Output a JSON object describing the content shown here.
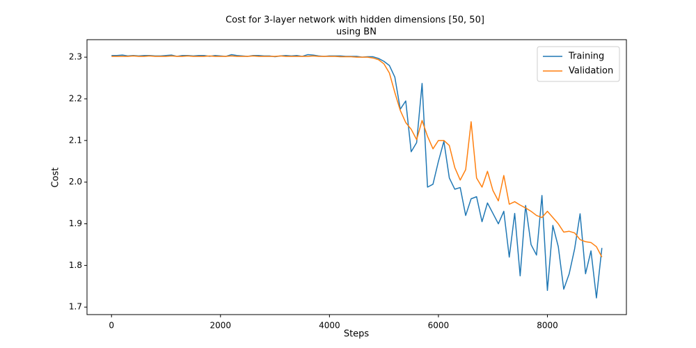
{
  "chart_data": {
    "type": "line",
    "title_lines": [
      "Cost for 3-layer network with hidden dimensions [50, 50]",
      "using BN"
    ],
    "x_label": "Steps",
    "y_label": "Cost",
    "x": [
      0,
      100,
      200,
      300,
      400,
      500,
      600,
      700,
      800,
      900,
      1000,
      1100,
      1200,
      1300,
      1400,
      1500,
      1600,
      1700,
      1800,
      1900,
      2000,
      2100,
      2200,
      2300,
      2400,
      2500,
      2600,
      2700,
      2800,
      2900,
      3000,
      3100,
      3200,
      3300,
      3400,
      3500,
      3600,
      3700,
      3800,
      3900,
      4000,
      4100,
      4200,
      4300,
      4400,
      4500,
      4600,
      4700,
      4800,
      4900,
      5000,
      5100,
      5200,
      5300,
      5400,
      5500,
      5600,
      5700,
      5800,
      5900,
      6000,
      6100,
      6200,
      6300,
      6400,
      6500,
      6600,
      6700,
      6800,
      6900,
      7000,
      7100,
      7200,
      7300,
      7400,
      7500,
      7600,
      7700,
      7800,
      7900,
      8000,
      8100,
      8200,
      8300,
      8400,
      8500,
      8600,
      8700,
      8800,
      8900,
      9000
    ],
    "series": [
      {
        "name": "Training",
        "color": "#1f77b4",
        "values": [
          2.304,
          2.304,
          2.305,
          2.303,
          2.304,
          2.303,
          2.304,
          2.304,
          2.303,
          2.303,
          2.304,
          2.305,
          2.302,
          2.304,
          2.304,
          2.303,
          2.304,
          2.304,
          2.302,
          2.304,
          2.303,
          2.302,
          2.306,
          2.304,
          2.303,
          2.302,
          2.304,
          2.304,
          2.303,
          2.303,
          2.301,
          2.303,
          2.304,
          2.303,
          2.304,
          2.302,
          2.306,
          2.305,
          2.303,
          2.302,
          2.303,
          2.303,
          2.303,
          2.302,
          2.302,
          2.302,
          2.3,
          2.301,
          2.301,
          2.297,
          2.29,
          2.28,
          2.252,
          2.175,
          2.195,
          2.073,
          2.095,
          2.237,
          1.988,
          1.995,
          2.05,
          2.098,
          2.01,
          1.983,
          1.987,
          1.92,
          1.96,
          1.965,
          1.905,
          1.95,
          1.925,
          1.9,
          1.93,
          1.82,
          1.925,
          1.775,
          1.944,
          1.85,
          1.825,
          1.968,
          1.74,
          1.896,
          1.845,
          1.743,
          1.78,
          1.84,
          1.924,
          1.78,
          1.835,
          1.722,
          1.842
        ]
      },
      {
        "name": "Validation",
        "color": "#ff7f0e",
        "values": [
          2.302,
          2.302,
          2.302,
          2.302,
          2.303,
          2.302,
          2.302,
          2.303,
          2.302,
          2.302,
          2.302,
          2.303,
          2.302,
          2.302,
          2.303,
          2.302,
          2.302,
          2.302,
          2.303,
          2.302,
          2.302,
          2.302,
          2.303,
          2.302,
          2.302,
          2.302,
          2.303,
          2.302,
          2.302,
          2.302,
          2.302,
          2.303,
          2.302,
          2.302,
          2.302,
          2.302,
          2.302,
          2.303,
          2.302,
          2.302,
          2.302,
          2.302,
          2.301,
          2.301,
          2.301,
          2.3,
          2.3,
          2.3,
          2.298,
          2.294,
          2.284,
          2.262,
          2.215,
          2.172,
          2.143,
          2.127,
          2.102,
          2.148,
          2.11,
          2.08,
          2.1,
          2.1,
          2.088,
          2.035,
          2.005,
          2.03,
          2.145,
          2.01,
          1.988,
          2.026,
          1.98,
          1.955,
          2.016,
          1.947,
          1.953,
          1.945,
          1.938,
          1.93,
          1.92,
          1.915,
          1.93,
          1.915,
          1.9,
          1.88,
          1.882,
          1.878,
          1.862,
          1.857,
          1.855,
          1.845,
          1.82
        ]
      }
    ],
    "xlim": [
      -450,
      9450
    ],
    "ylim": [
      1.682,
      2.342
    ],
    "xticks": [
      0,
      2000,
      4000,
      6000,
      8000
    ],
    "yticks": [
      1.7,
      1.8,
      1.9,
      {
        "value": 2.0,
        "label": "2.0"
      },
      2.1,
      2.2,
      2.3
    ],
    "legend": "upper right"
  }
}
